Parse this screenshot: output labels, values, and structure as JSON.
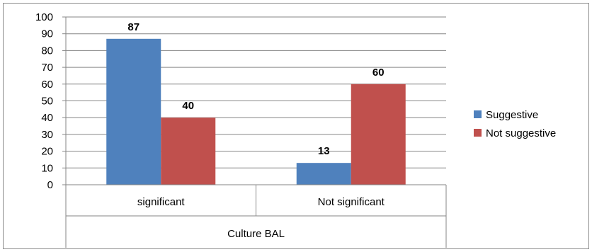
{
  "chart_data": {
    "type": "bar",
    "title": "",
    "xlabel": "Culture BAL",
    "ylabel": "",
    "categories": [
      "significant",
      "Not significant"
    ],
    "series": [
      {
        "name": "Suggestive",
        "values": [
          87,
          13
        ],
        "color": "#4f81bd"
      },
      {
        "name": "Not suggestive",
        "values": [
          40,
          60
        ],
        "color": "#c0504d"
      }
    ],
    "ylim": [
      0,
      100
    ],
    "yticks": [
      "0",
      "10",
      "20",
      "30",
      "40",
      "50",
      "60",
      "70",
      "80",
      "90",
      "100"
    ],
    "grid": true,
    "legend": "right"
  }
}
